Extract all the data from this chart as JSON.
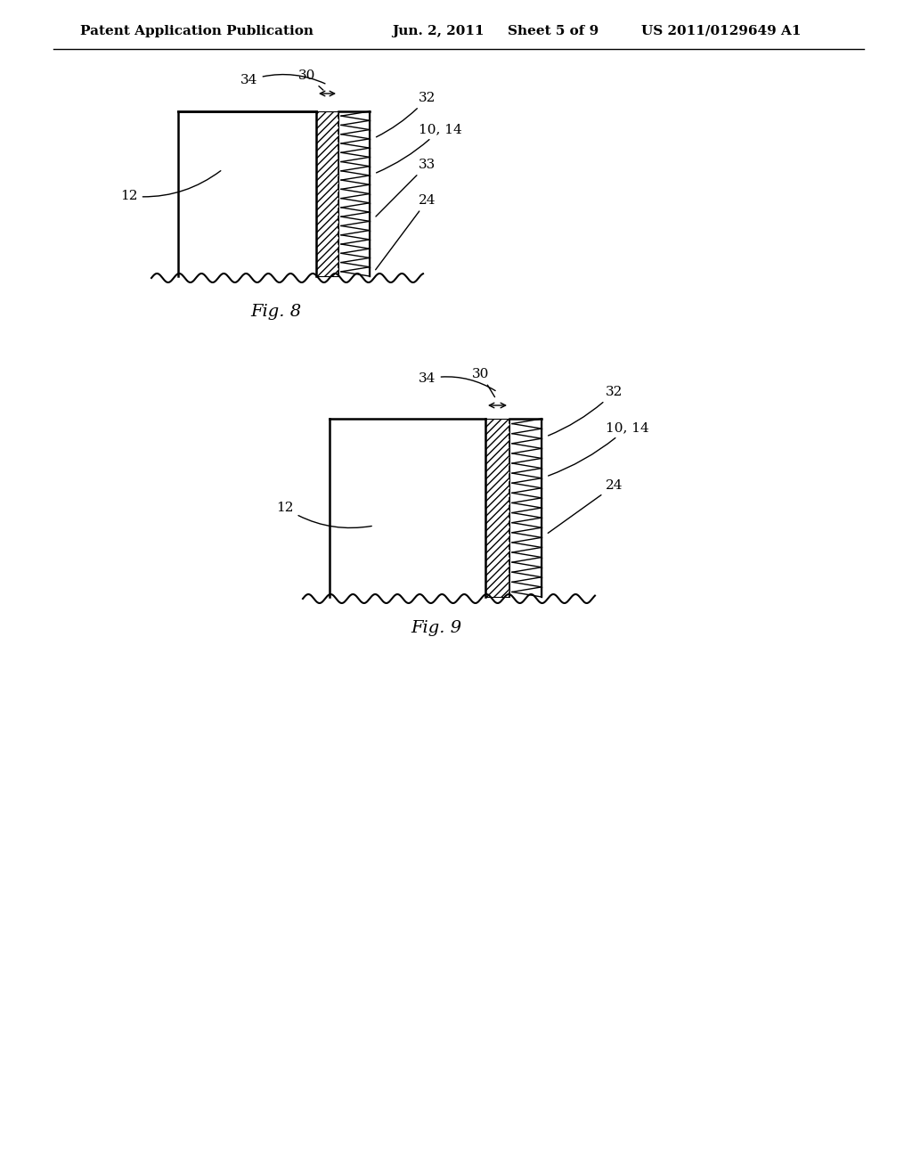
{
  "bg_color": "#ffffff",
  "header_text": "Patent Application Publication",
  "header_date": "Jun. 2, 2011",
  "header_sheet": "Sheet 5 of 9",
  "header_patent": "US 2011/0129649 A1",
  "fig8_caption": "Fig. 8",
  "fig9_caption": "Fig. 9",
  "line_color": "#000000",
  "hatch_color": "#000000"
}
